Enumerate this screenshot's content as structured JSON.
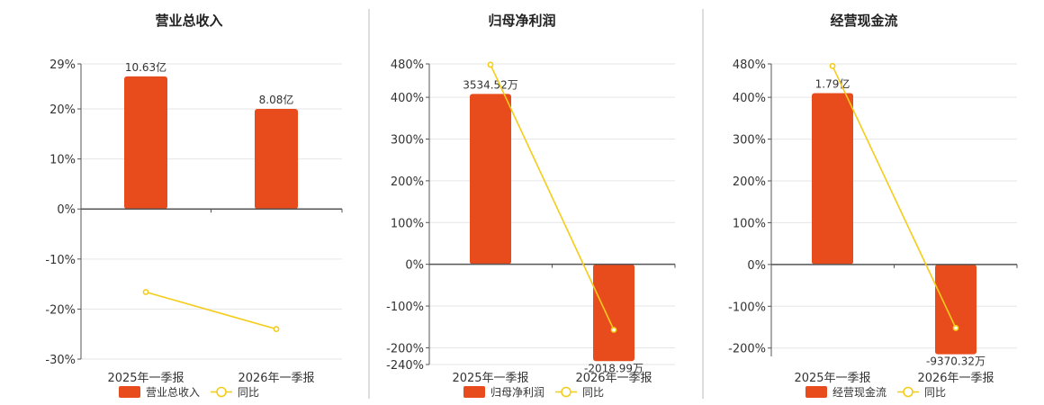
{
  "colors": {
    "bar": "#E84B1C",
    "line": "#F5CC1A",
    "divider": "#bbbbbb",
    "grid": "#e6e6e6",
    "axis": "#555555"
  },
  "chart_data": [
    {
      "type": "bar",
      "title": "营业总收入",
      "categories": [
        "2025年一季报",
        "2026年一季报"
      ],
      "ylim": [
        -30,
        29
      ],
      "yticks": [
        29,
        20,
        10,
        0,
        -10,
        -20,
        -30
      ],
      "series": [
        {
          "name": "营业总收入",
          "type": "bar",
          "values": [
            26.5,
            20
          ],
          "labels": [
            "10.63亿",
            "8.08亿"
          ]
        },
        {
          "name": "同比",
          "type": "line",
          "values": [
            -16.6,
            -24.0
          ]
        }
      ],
      "legend_position": "bottom"
    },
    {
      "type": "bar",
      "title": "归母净利润",
      "categories": [
        "2025年一季报",
        "2026年一季报"
      ],
      "ylim": [
        -240,
        480
      ],
      "yticks": [
        480,
        400,
        300,
        200,
        100,
        0,
        -100,
        -200,
        -240
      ],
      "series": [
        {
          "name": "归母净利润",
          "type": "bar",
          "values": [
            408,
            -232
          ],
          "labels": [
            "3534.52万",
            "-2018.99万"
          ]
        },
        {
          "name": "同比",
          "type": "line",
          "values": [
            478,
            -157
          ]
        }
      ],
      "legend_position": "bottom"
    },
    {
      "type": "bar",
      "title": "经营现金流",
      "categories": [
        "2025年一季报",
        "2026年一季报"
      ],
      "ylim": [
        -220,
        480
      ],
      "yticks": [
        480,
        400,
        300,
        200,
        100,
        0,
        -100,
        -200
      ],
      "series": [
        {
          "name": "经营现金流",
          "type": "bar",
          "values": [
            410,
            -215
          ],
          "labels": [
            "1.79亿",
            "-9370.32万"
          ]
        },
        {
          "name": "同比",
          "type": "line",
          "values": [
            475,
            -152
          ]
        }
      ],
      "legend_position": "bottom"
    }
  ]
}
